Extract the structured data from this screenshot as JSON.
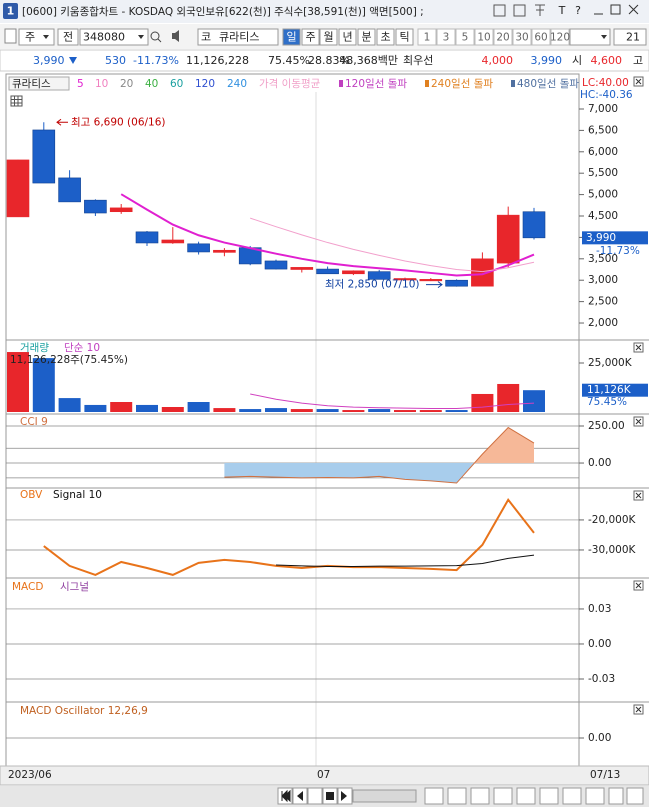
{
  "title_bar": {
    "number": "1",
    "text": "[0600] 키움종합차트 - KOSDAQ 외국인보유[622(천)] 주식수[38,591(천)] 액면[500] ;",
    "buttons": [
      "T",
      "?"
    ]
  },
  "toolbar": {
    "market": "주",
    "range": "전",
    "code": "348080",
    "prefix": "코",
    "name": "큐라티스",
    "periods": [
      "일",
      "주",
      "월",
      "년",
      "분",
      "초",
      "틱"
    ],
    "intervals": [
      "1",
      "3",
      "5",
      "10",
      "20",
      "30",
      "60",
      "120"
    ],
    "count": "21"
  },
  "info": {
    "price": "3,990",
    "change": "530",
    "change_pct": "-11.73%",
    "volume": "11,126,228",
    "volume_ratio": "75.45%",
    "turnover": "28.83%",
    "amount": "48,368백만",
    "best_label": "최우선",
    "ask": "4,000",
    "bid": "3,990",
    "open_label": "시",
    "open": "4,600",
    "high_label": "고"
  },
  "chart_data": [
    {
      "type": "candlestick",
      "name": "큐라티스",
      "open": [
        4480,
        6510,
        5390,
        4870,
        4600,
        4130,
        3870,
        3850,
        3650,
        3760,
        3450,
        3250,
        3260,
        3150,
        3200,
        3020,
        3000,
        3000,
        2860,
        3400,
        4600
      ],
      "high": [
        5810,
        6690,
        5570,
        4890,
        4780,
        4150,
        4240,
        3900,
        3750,
        3800,
        3480,
        3300,
        3320,
        3230,
        3240,
        3060,
        3050,
        3020,
        3650,
        4720,
        4690
      ],
      "low": [
        4480,
        5270,
        4830,
        4500,
        4550,
        3800,
        3850,
        3600,
        3560,
        3350,
        3250,
        3180,
        3150,
        3120,
        3020,
        3000,
        2980,
        2850,
        2860,
        3300,
        3950
      ],
      "close": [
        5810,
        5270,
        4830,
        4570,
        4690,
        3870,
        3940,
        3660,
        3700,
        3380,
        3260,
        3300,
        3150,
        3220,
        3020,
        3040,
        3020,
        2860,
        3500,
        4520,
        3990
      ],
      "up_color": "#e8262b",
      "down_color": "#1c5fc8",
      "ylim": [
        1650,
        7210
      ],
      "yticks": [
        {
          "value": 7000,
          "label": "7,000"
        },
        {
          "value": 6500,
          "label": "6,500"
        },
        {
          "value": 6000,
          "label": "6,000"
        },
        {
          "value": 5500,
          "label": "5,500"
        },
        {
          "value": 5000,
          "label": "5,000"
        },
        {
          "value": 4500,
          "label": "4,500"
        },
        {
          "value": 4000,
          "label": "4,000"
        },
        {
          "value": 3500,
          "label": "3,500"
        },
        {
          "value": 3000,
          "label": "3,000"
        },
        {
          "value": 2500,
          "label": "2,500"
        },
        {
          "value": 2000,
          "label": "2,000"
        }
      ],
      "moving_averages": [
        {
          "color": "#e020d0",
          "values": [
            null,
            null,
            null,
            null,
            5010,
            4650,
            4300,
            4050,
            3880,
            3750,
            3620,
            3500,
            3400,
            3330,
            3280,
            3230,
            3170,
            3110,
            3140,
            3350,
            3600
          ]
        },
        {
          "color": "#f2a0cc",
          "values": [
            null,
            null,
            null,
            null,
            null,
            null,
            null,
            null,
            null,
            4450,
            4250,
            4060,
            3880,
            3720,
            3580,
            3450,
            3340,
            3250,
            3200,
            3290,
            3420
          ]
        }
      ],
      "legend": [
        {
          "text": "5",
          "color": "#e020d0"
        },
        {
          "text": "10",
          "color": "#f080c0"
        },
        {
          "text": "20",
          "color": "#888888"
        },
        {
          "text": "40",
          "color": "#3cb043"
        },
        {
          "text": "60",
          "color": "#1aa0a0"
        },
        {
          "text": "120",
          "color": "#3050d0"
        },
        {
          "text": "240",
          "color": "#3090e0"
        },
        {
          "text": "가격 이동평균",
          "color": "#f0a0c8"
        },
        {
          "text": "120일선 돌파",
          "color": "#c040c0"
        },
        {
          "text": "240일선 돌파",
          "color": "#e08020"
        },
        {
          "text": "480일선 돌파",
          "color": "#5070a0"
        }
      ],
      "lc": "LC:40.00",
      "hc": "HC:-40.36",
      "high_annotation": "최고 6,690 (06/16)",
      "low_annotation": "최저 2,850 (07/10)",
      "last_price_label": "3,990",
      "last_change_label": "-11.73%"
    },
    {
      "type": "bar",
      "legend": [
        "거래량",
        "단순 10"
      ],
      "readout": "11,126,228주(75.45%)",
      "values": [
        30600,
        27500,
        7100,
        3600,
        5100,
        3600,
        2550,
        5100,
        2000,
        1500,
        2000,
        1500,
        1500,
        1000,
        1500,
        1000,
        1000,
        1000,
        9200,
        14300,
        11126
      ],
      "ma": {
        "color": "#d040c0",
        "values": [
          null,
          null,
          null,
          null,
          null,
          null,
          null,
          null,
          null,
          9200,
          6500,
          4500,
          3200,
          2500,
          2200,
          2000,
          1800,
          1800,
          2500,
          3800,
          4500
        ]
      },
      "ylim": [
        0,
        34700
      ],
      "yticks": [
        {
          "value": 25000,
          "label": "25,000K"
        }
      ],
      "last_label": "11,126K",
      "ratio_label": "75.45%"
    },
    {
      "type": "line",
      "legend": [
        "CCI 9"
      ],
      "color": "#d07040",
      "values": [
        null,
        null,
        null,
        null,
        null,
        null,
        null,
        null,
        -95,
        -90,
        -95,
        -100,
        -98,
        -100,
        -90,
        -110,
        -120,
        -135,
        60,
        240,
        135
      ],
      "ylim": [
        -155,
        304
      ],
      "yticks": [
        {
          "value": 250,
          "label": "250.00"
        },
        {
          "value": 0,
          "label": "0.00"
        }
      ],
      "guides": [
        100,
        -100
      ]
    },
    {
      "type": "line",
      "legend": [
        "OBV",
        "Signal 10"
      ],
      "series": [
        {
          "name": "OBV",
          "color": "#e8731a",
          "values": [
            null,
            -28700,
            -35300,
            -38300,
            -34000,
            -36000,
            -38300,
            -34300,
            -33300,
            -34000,
            -35300,
            -36000,
            -35300,
            -35700,
            -35700,
            -36000,
            -36300,
            -36700,
            -28300,
            -13300,
            -24300
          ]
        },
        {
          "name": "Signal 10",
          "color": "#111111",
          "values": [
            null,
            null,
            null,
            null,
            null,
            null,
            null,
            null,
            null,
            null,
            -35000,
            -35300,
            -35500,
            -35500,
            -35400,
            -35400,
            -35300,
            -35200,
            -34500,
            -32800,
            -31700
          ]
        }
      ],
      "ylim": [
        -39000,
        -10700
      ],
      "yticks": [
        {
          "value": -20000,
          "label": "-20,000K"
        },
        {
          "value": -30000,
          "label": "-30,000K"
        }
      ]
    },
    {
      "type": "line",
      "legend": [
        "MACD",
        "시그널"
      ],
      "ylim": [
        -0.048,
        0.0531
      ],
      "yticks": [
        0.03,
        {
          "value": 0,
          "label": "0.00"
        },
        -0.03
      ]
    },
    {
      "type": "bar",
      "legend": [
        "MACD Oscillator 12,26,9"
      ],
      "ylim": [
        -0.27,
        0.33
      ],
      "yticks": [
        {
          "value": 0,
          "label": "0.00"
        }
      ]
    }
  ],
  "dates": [
    "2023/06",
    "07",
    "07/13"
  ]
}
